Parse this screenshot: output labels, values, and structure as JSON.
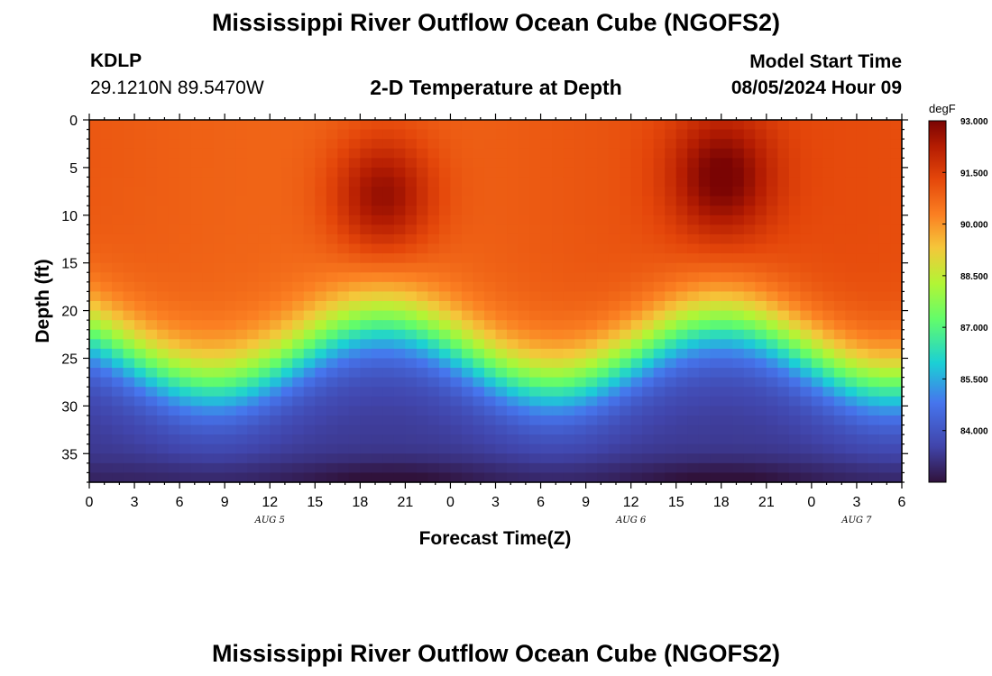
{
  "header": {
    "title": "Mississippi River Outflow Ocean Cube (NGOFS2)",
    "station_id": "KDLP",
    "coordinates": "29.1210N  89.5470W",
    "plot_title": "2-D Temperature at Depth",
    "model_start_label": "Model Start Time",
    "model_start_value": "08/05/2024 Hour 09"
  },
  "footer": {
    "title": "Mississippi River Outflow Ocean Cube (NGOFS2)"
  },
  "chart_data": {
    "type": "heatmap",
    "title": "2-D Temperature at Depth",
    "xlabel": "Forecast Time(Z)",
    "ylabel": "Depth (ft)",
    "x_range_hours": [
      0,
      54
    ],
    "y_range_ft": [
      0,
      38
    ],
    "x_tick_labels": [
      "0",
      "3",
      "6",
      "9",
      "12",
      "15",
      "18",
      "21",
      "0",
      "3",
      "6",
      "9",
      "12",
      "15",
      "18",
      "21",
      "0",
      "3",
      "6"
    ],
    "y_ticks": [
      0,
      5,
      10,
      15,
      20,
      25,
      30,
      35
    ],
    "date_labels": [
      {
        "text": "AUG 5",
        "hour": 12
      },
      {
        "text": "AUG 6",
        "hour": 36
      },
      {
        "text": "AUG 7",
        "hour": 51
      }
    ],
    "colorbar": {
      "unit": "degF",
      "min": 82.5,
      "max": 93.0,
      "tick_values": [
        93.0,
        91.5,
        90.0,
        88.5,
        87.0,
        85.5,
        84.0
      ],
      "tick_labels": [
        "93.000",
        "91.500",
        "90.000",
        "88.500",
        "87.000",
        "85.500",
        "84.000"
      ]
    },
    "description_of_field": {
      "surface_temp_degF": 91.0,
      "warm_cores": [
        {
          "hour": 19.5,
          "depth_ft": 7,
          "temp_degF": 93.0
        },
        {
          "hour": 42.0,
          "depth_ft": 5,
          "temp_degF": 93.0
        }
      ],
      "thermocline_depth_ft_range": [
        20,
        30
      ],
      "bottom_temp_degF": 82.8
    }
  }
}
